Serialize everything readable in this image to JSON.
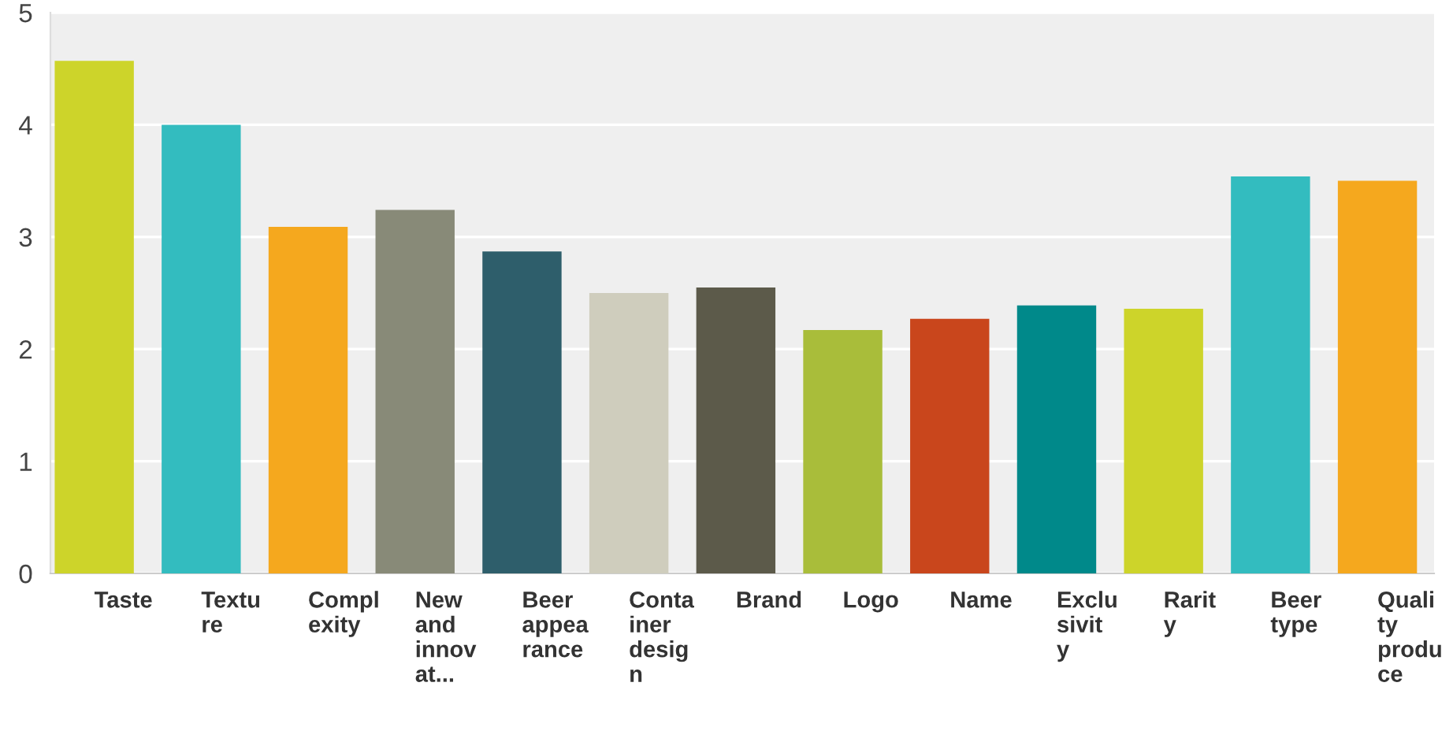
{
  "chart_data": {
    "type": "bar",
    "categories": [
      "Taste",
      "Textu\nre",
      "Compl\nexity",
      "New\nand\ninnov\nat...",
      "Beer\nappea\nrance",
      "Conta\niner\ndesig\nn",
      "Brand",
      "Logo",
      "Name",
      "Exclu\nsivit\ny",
      "Rarit\ny",
      "Beer\ntype",
      "Quali\nty\nprodu\nce"
    ],
    "values": [
      4.57,
      4.0,
      3.09,
      3.24,
      2.87,
      2.5,
      2.55,
      2.17,
      2.27,
      2.39,
      2.36,
      3.54,
      3.5
    ],
    "colors": [
      "#cdd42a",
      "#33bcbf",
      "#f5a81e",
      "#888a78",
      "#2e5e6b",
      "#cfcdbd",
      "#5c5a4a",
      "#a9bd3a",
      "#c9461c",
      "#00898a",
      "#cdd42a",
      "#33bcbf",
      "#f5a81e"
    ],
    "ylim": [
      0,
      5
    ],
    "yticks": [
      0,
      1,
      2,
      3,
      4,
      5
    ],
    "grid": "y"
  }
}
